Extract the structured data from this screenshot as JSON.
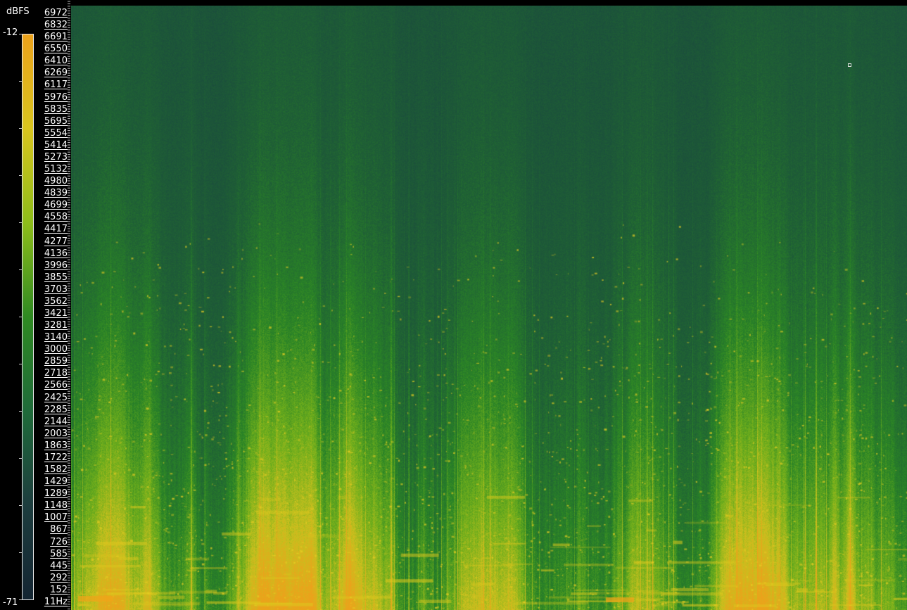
{
  "colorbar": {
    "unit": "dBFS",
    "max_label": "-12",
    "min_label": "-71",
    "range_db": [
      -71,
      -12
    ],
    "colors": [
      "#142532",
      "#1d3d3e",
      "#1f6b3a",
      "#2f8a22",
      "#8ebd1a",
      "#d9c51e",
      "#eca21b"
    ]
  },
  "frequency_axis": {
    "labels": [
      "6972",
      "6832",
      "6691",
      "6550",
      "6410",
      "6269",
      "6117",
      "5976",
      "5835",
      "5695",
      "5554",
      "5414",
      "5273",
      "5132",
      "4980",
      "4839",
      "4699",
      "4558",
      "4417",
      "4277",
      "4136",
      "3996",
      "3855",
      "3703",
      "3562",
      "3421",
      "3281",
      "3140",
      "3000",
      "2859",
      "2718",
      "2566",
      "2425",
      "2285",
      "2144",
      "2003",
      "1863",
      "1722",
      "1582",
      "1429",
      "1289",
      "1148",
      "1007",
      "867",
      "726",
      "585",
      "445",
      "292",
      "152",
      "11Hz"
    ]
  },
  "spectrogram": {
    "background": "#1d5b35",
    "low_energy": "#1e4f3c",
    "mid_energy": "#2f8a22",
    "high_energy": "#d9c51e",
    "peak_energy": "#eca21b"
  }
}
